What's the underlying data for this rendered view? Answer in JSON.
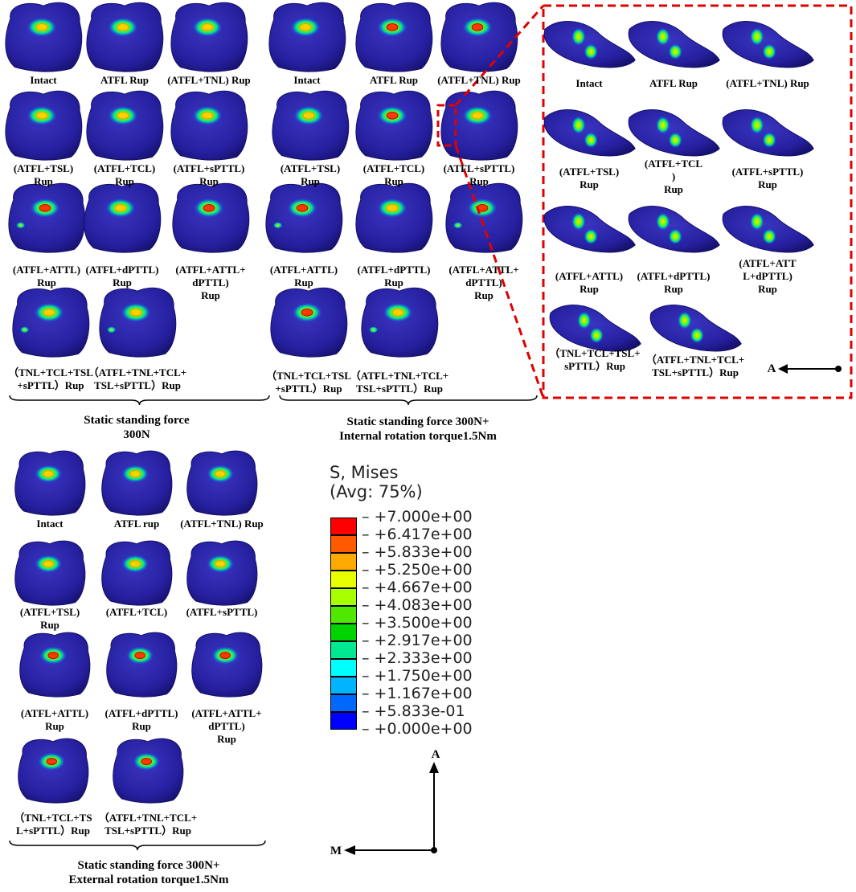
{
  "groups": {
    "static": {
      "brace_label": "Static standing force\n300N",
      "models": [
        {
          "label": "Intact",
          "hot": "hot"
        },
        {
          "label": "ATFL Rup",
          "hot": "hot"
        },
        {
          "label": "(ATFL+TNL) Rup",
          "hot": "hot"
        },
        {
          "label": "(ATFL+TSL)\nRup",
          "hot": "hot"
        },
        {
          "label": "(ATFL+TCL)\nRup",
          "hot": "hot"
        },
        {
          "label": "(ATFL+sPTTL)\nRup",
          "hot": "hot"
        },
        {
          "label": "(ATFL+ATTL)\nRup",
          "hot": "red",
          "secondary": true
        },
        {
          "label": "(ATFL+dPTTL)\nRup",
          "hot": "hot"
        },
        {
          "label": "(ATFL+ATTL+\ndPTTL)\nRup",
          "hot": "red"
        },
        {
          "label": "（TNL+TCL+TSL\n+sPTTL）Rup",
          "hot": "hot",
          "secondary": true
        },
        {
          "label": "（ATFL+TNL+TCL+\nTSL+sPTTL）Rup",
          "hot": "hot",
          "secondary": true
        }
      ]
    },
    "internal": {
      "brace_label": "Static standing force 300N+\nInternal rotation torque1.5Nm",
      "models": [
        {
          "label": "Intact",
          "hot": "hot"
        },
        {
          "label": "ATFL Rup",
          "hot": "red"
        },
        {
          "label": "(ATFL+TNL) Rup",
          "hot": "red"
        },
        {
          "label": "(ATFL+TSL)\nRup",
          "hot": "hot"
        },
        {
          "label": "(ATFL+TCL)\nRup",
          "hot": "red"
        },
        {
          "label": "(ATFL+sPTTL)\nRup",
          "hot": "hot"
        },
        {
          "label": "(ATFL+ATTL)\nRup",
          "hot": "red",
          "secondary": true
        },
        {
          "label": "(ATFL+dPTTL)\nRup",
          "hot": "hot"
        },
        {
          "label": "(ATFL+ATTL+\ndPTTL)\nRup",
          "hot": "red",
          "secondary": true
        },
        {
          "label": "（TNL+TCL+TSL\n+sPTTL）Rup",
          "hot": "red"
        },
        {
          "label": "（ATFL+TNL+TCL+\nTSL+sPTTL）Rup",
          "hot": "hot",
          "secondary": true
        }
      ]
    },
    "external": {
      "brace_label": "Static standing force 300N+\nExternal rotation torque1.5Nm",
      "models": [
        {
          "label": "Intact",
          "hot": "hot"
        },
        {
          "label": "ATFL rup",
          "hot": "hot"
        },
        {
          "label": "(ATFL+TNL) Rup",
          "hot": "hot"
        },
        {
          "label": "(ATFL+TSL)\nRup",
          "hot": "hot"
        },
        {
          "label": "(ATFL+TCL)",
          "hot": "hot"
        },
        {
          "label": "(ATFL+sPTTL)",
          "hot": "hot"
        },
        {
          "label": "(ATFL+ATTL)\nRup",
          "hot": "red"
        },
        {
          "label": "(ATFL+dPTTL)\nRup",
          "hot": "red"
        },
        {
          "label": "(ATFL+ATTL+\ndPTTL)\nRup",
          "hot": "red"
        },
        {
          "label": "（TNL+TCL+TS\nL+sPTTL）Rup",
          "hot": "red"
        },
        {
          "label": "（ATFL+TNL+TCL+\nTSL+sPTTL）Rup",
          "hot": "red"
        }
      ]
    },
    "zoom": {
      "models": [
        {
          "label": "Intact"
        },
        {
          "label": "ATFL Rup"
        },
        {
          "label": "(ATFL+TNL) Rup"
        },
        {
          "label": "(ATFL+TSL)\nRup"
        },
        {
          "label": "(ATFL+TCL\n)\nRup"
        },
        {
          "label": "(ATFL+sPTTL)\nRup"
        },
        {
          "label": "(ATFL+ATTL)\nRup"
        },
        {
          "label": "(ATFL+dPTTL)\nRup"
        },
        {
          "label": "(ATFL+ATT\nL+dPTTL)\nRup"
        },
        {
          "label": "（TNL+TCL+TSL+\nsPTTL）Rup"
        },
        {
          "label": "（ATFL+TNL+TCL+\nTSL+sPTTL）Rup"
        }
      ],
      "arrow_label": "A"
    }
  },
  "legend": {
    "title": "S, Mises",
    "subtitle": "(Avg: 75%)",
    "ticks": [
      "+7.000e+00",
      "+6.417e+00",
      "+5.833e+00",
      "+5.250e+00",
      "+4.667e+00",
      "+4.083e+00",
      "+3.500e+00",
      "+2.917e+00",
      "+2.333e+00",
      "+1.750e+00",
      "+1.167e+00",
      "+5.833e-01",
      "+0.000e+00"
    ],
    "colors": [
      "#ff0000",
      "#ff5a00",
      "#ffaa00",
      "#e8ff00",
      "#a8ff00",
      "#50e800",
      "#00d400",
      "#00e890",
      "#00ffff",
      "#00b4ff",
      "#0068ff",
      "#0000ff"
    ]
  },
  "axes": {
    "a_label": "A",
    "m_label": "M"
  },
  "colors": {
    "bone": "#2a22a0",
    "bone_edge": "#151060",
    "highlight": "#e00000"
  }
}
